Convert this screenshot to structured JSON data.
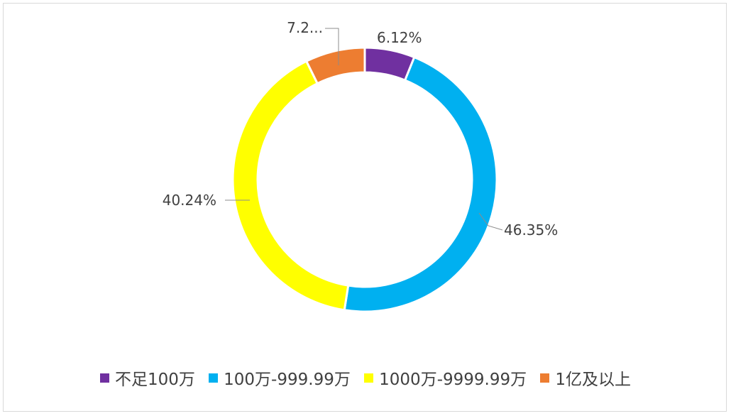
{
  "chart_data": {
    "type": "pie",
    "subtype": "donut",
    "categories": [
      "不足100万",
      "100万-999.99万",
      "1000万-9999.99万",
      "1亿及以上"
    ],
    "values": [
      6.12,
      46.35,
      40.24,
      7.29
    ],
    "data_labels": [
      "6.12%",
      "46.35%",
      "40.24%",
      "7.2..."
    ],
    "colors": [
      "#7030a0",
      "#00b0f0",
      "#ffff00",
      "#ed7d31"
    ],
    "legend_position": "bottom",
    "title": ""
  }
}
